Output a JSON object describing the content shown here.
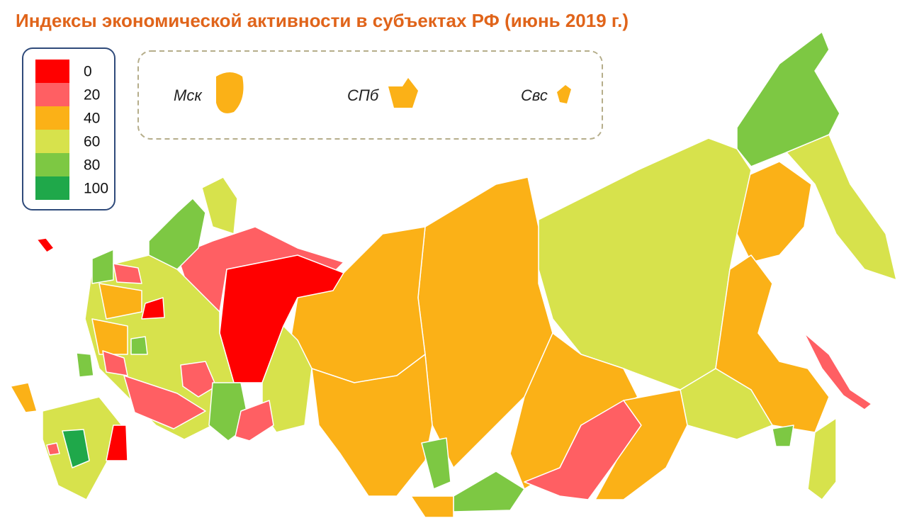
{
  "title": "Индексы экономической активности в субъектах РФ (июнь 2019 г.)",
  "legend": [
    {
      "value": 0,
      "color": "#ff0000"
    },
    {
      "value": 20,
      "color": "#ff5f63"
    },
    {
      "value": 40,
      "color": "#fbb117"
    },
    {
      "value": 60,
      "color": "#d7e24c"
    },
    {
      "value": 80,
      "color": "#7dc843"
    },
    {
      "value": 100,
      "color": "#1fa84a"
    }
  ],
  "insets": [
    {
      "label": "Мск",
      "class": 2
    },
    {
      "label": "СПб",
      "class": 2
    },
    {
      "label": "Свс",
      "class": 2
    }
  ]
}
